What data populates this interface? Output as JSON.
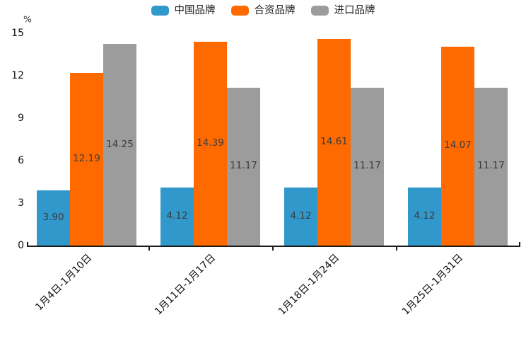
{
  "chart_data": {
    "type": "bar",
    "title": "",
    "xlabel": "",
    "ylabel": "%",
    "categories": [
      "1月4日-1月10日",
      "1月11日-1月17日",
      "1月18日-1月24日",
      "1月25日-1月31日"
    ],
    "series": [
      {
        "name": "中国品牌",
        "color": "#3198cb",
        "values": [
          3.9,
          4.12,
          4.12,
          4.12
        ]
      },
      {
        "name": "合资品牌",
        "color": "#ff6a00",
        "values": [
          12.19,
          14.39,
          14.61,
          14.07
        ]
      },
      {
        "name": "进口品牌",
        "color": "#9c9c9c",
        "values": [
          14.25,
          11.17,
          11.17,
          11.17
        ]
      }
    ],
    "y_ticks": [
      0,
      3,
      6,
      9,
      12,
      15
    ],
    "ylim": [
      0,
      15
    ],
    "grid": false,
    "legend_position": "top",
    "value_label_position": "inside-center",
    "value_decimals": 2,
    "axis_color": "#1a1a1a"
  }
}
